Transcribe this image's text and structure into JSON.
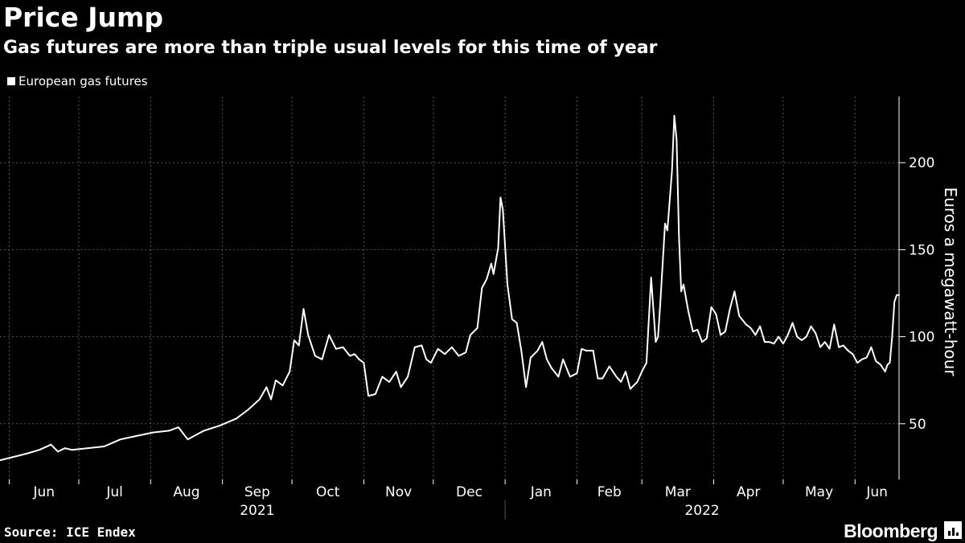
{
  "title": "Price Jump",
  "subtitle": "Gas futures are more than triple usual levels for this time of year",
  "source": "Source: ICE Endex",
  "brand": "Bloomberg",
  "colors": {
    "background": "#000000",
    "line": "#ffffff",
    "grid": "#555555"
  },
  "chart_data": {
    "type": "line",
    "title": "Price Jump",
    "subtitle": "Gas futures are more than triple usual levels for this time of year",
    "xlabel": "",
    "ylabel": "Euros a megawatt-hour",
    "ylim": [
      18,
      238
    ],
    "y_ticks": [
      50,
      100,
      150,
      200
    ],
    "xlim": [
      "2021-05-28",
      "2022-06-20"
    ],
    "x_ticks": [
      {
        "label": "Jun",
        "date": "2021-06-01"
      },
      {
        "label": "Jul",
        "date": "2021-07-01"
      },
      {
        "label": "Aug",
        "date": "2021-08-01"
      },
      {
        "label": "Sep",
        "date": "2021-09-01"
      },
      {
        "label": "Oct",
        "date": "2021-10-01"
      },
      {
        "label": "Nov",
        "date": "2021-11-01"
      },
      {
        "label": "Dec",
        "date": "2021-12-01"
      },
      {
        "label": "Jan",
        "date": "2022-01-01"
      },
      {
        "label": "Feb",
        "date": "2022-02-01"
      },
      {
        "label": "Mar",
        "date": "2022-03-01"
      },
      {
        "label": "Apr",
        "date": "2022-04-01"
      },
      {
        "label": "May",
        "date": "2022-05-01"
      },
      {
        "label": "Jun",
        "date": "2022-06-01"
      }
    ],
    "year_labels": [
      {
        "label": "2021",
        "from": "2021-06-01",
        "to": "2022-01-01"
      },
      {
        "label": "2022",
        "from": "2022-01-01",
        "to": "2022-06-20"
      }
    ],
    "grid": true,
    "legend_position": "top-left",
    "series": [
      {
        "name": "European gas futures",
        "points": [
          [
            "2021-05-28",
            29
          ],
          [
            "2021-06-03",
            31
          ],
          [
            "2021-06-09",
            33
          ],
          [
            "2021-06-14",
            35
          ],
          [
            "2021-06-19",
            38
          ],
          [
            "2021-06-22",
            34
          ],
          [
            "2021-06-25",
            36
          ],
          [
            "2021-06-28",
            35
          ],
          [
            "2021-07-05",
            36
          ],
          [
            "2021-07-12",
            37
          ],
          [
            "2021-07-19",
            41
          ],
          [
            "2021-07-26",
            43
          ],
          [
            "2021-08-02",
            45
          ],
          [
            "2021-08-09",
            46
          ],
          [
            "2021-08-13",
            48
          ],
          [
            "2021-08-17",
            41
          ],
          [
            "2021-08-24",
            46
          ],
          [
            "2021-08-31",
            49
          ],
          [
            "2021-09-07",
            53
          ],
          [
            "2021-09-12",
            58
          ],
          [
            "2021-09-17",
            64
          ],
          [
            "2021-09-20",
            71
          ],
          [
            "2021-09-22",
            64
          ],
          [
            "2021-09-24",
            75
          ],
          [
            "2021-09-27",
            72
          ],
          [
            "2021-09-30",
            80
          ],
          [
            "2021-10-02",
            98
          ],
          [
            "2021-10-04",
            95
          ],
          [
            "2021-10-06",
            116
          ],
          [
            "2021-10-08",
            101
          ],
          [
            "2021-10-11",
            89
          ],
          [
            "2021-10-14",
            87
          ],
          [
            "2021-10-17",
            101
          ],
          [
            "2021-10-20",
            93
          ],
          [
            "2021-10-23",
            94
          ],
          [
            "2021-10-26",
            89
          ],
          [
            "2021-10-28",
            90
          ],
          [
            "2021-10-30",
            87
          ],
          [
            "2021-11-01",
            85
          ],
          [
            "2021-11-03",
            66
          ],
          [
            "2021-11-06",
            67
          ],
          [
            "2021-11-09",
            77
          ],
          [
            "2021-11-12",
            74
          ],
          [
            "2021-11-15",
            80
          ],
          [
            "2021-11-17",
            71
          ],
          [
            "2021-11-20",
            77
          ],
          [
            "2021-11-23",
            94
          ],
          [
            "2021-11-26",
            95
          ],
          [
            "2021-11-28",
            87
          ],
          [
            "2021-11-30",
            85
          ],
          [
            "2021-12-03",
            93
          ],
          [
            "2021-12-06",
            90
          ],
          [
            "2021-12-09",
            94
          ],
          [
            "2021-12-12",
            89
          ],
          [
            "2021-12-15",
            91
          ],
          [
            "2021-12-17",
            101
          ],
          [
            "2021-12-20",
            105
          ],
          [
            "2021-12-22",
            128
          ],
          [
            "2021-12-24",
            133
          ],
          [
            "2021-12-26",
            142
          ],
          [
            "2021-12-27",
            136
          ],
          [
            "2021-12-29",
            151
          ],
          [
            "2021-12-30",
            180
          ],
          [
            "2021-12-31",
            173
          ],
          [
            "2022-01-02",
            130
          ],
          [
            "2022-01-04",
            110
          ],
          [
            "2022-01-06",
            108
          ],
          [
            "2022-01-08",
            92
          ],
          [
            "2022-01-10",
            71
          ],
          [
            "2022-01-12",
            88
          ],
          [
            "2022-01-15",
            92
          ],
          [
            "2022-01-17",
            97
          ],
          [
            "2022-01-19",
            87
          ],
          [
            "2022-01-21",
            82
          ],
          [
            "2022-01-24",
            77
          ],
          [
            "2022-01-26",
            87
          ],
          [
            "2022-01-29",
            77
          ],
          [
            "2022-02-01",
            79
          ],
          [
            "2022-02-03",
            93
          ],
          [
            "2022-02-05",
            92
          ],
          [
            "2022-02-08",
            92
          ],
          [
            "2022-02-10",
            76
          ],
          [
            "2022-02-12",
            76
          ],
          [
            "2022-02-15",
            83
          ],
          [
            "2022-02-18",
            77
          ],
          [
            "2022-02-20",
            74
          ],
          [
            "2022-02-22",
            80
          ],
          [
            "2022-02-24",
            70
          ],
          [
            "2022-02-27",
            74
          ],
          [
            "2022-03-01",
            80
          ],
          [
            "2022-03-03",
            85
          ],
          [
            "2022-03-05",
            134
          ],
          [
            "2022-03-07",
            97
          ],
          [
            "2022-03-08",
            100
          ],
          [
            "2022-03-09",
            120
          ],
          [
            "2022-03-11",
            165
          ],
          [
            "2022-03-12",
            161
          ],
          [
            "2022-03-14",
            195
          ],
          [
            "2022-03-15",
            227
          ],
          [
            "2022-03-16",
            213
          ],
          [
            "2022-03-17",
            158
          ],
          [
            "2022-03-18",
            126
          ],
          [
            "2022-03-19",
            130
          ],
          [
            "2022-03-21",
            115
          ],
          [
            "2022-03-23",
            103
          ],
          [
            "2022-03-25",
            104
          ],
          [
            "2022-03-27",
            97
          ],
          [
            "2022-03-29",
            99
          ],
          [
            "2022-03-31",
            117
          ],
          [
            "2022-04-02",
            113
          ],
          [
            "2022-04-04",
            101
          ],
          [
            "2022-04-06",
            103
          ],
          [
            "2022-04-08",
            116
          ],
          [
            "2022-04-10",
            126
          ],
          [
            "2022-04-12",
            112
          ],
          [
            "2022-04-15",
            107
          ],
          [
            "2022-04-17",
            105
          ],
          [
            "2022-04-19",
            101
          ],
          [
            "2022-04-21",
            106
          ],
          [
            "2022-04-23",
            97
          ],
          [
            "2022-04-25",
            97
          ],
          [
            "2022-04-27",
            96
          ],
          [
            "2022-04-29",
            100
          ],
          [
            "2022-05-01",
            96
          ],
          [
            "2022-05-03",
            101
          ],
          [
            "2022-05-05",
            108
          ],
          [
            "2022-05-07",
            100
          ],
          [
            "2022-05-09",
            98
          ],
          [
            "2022-05-11",
            100
          ],
          [
            "2022-05-13",
            106
          ],
          [
            "2022-05-15",
            102
          ],
          [
            "2022-05-17",
            94
          ],
          [
            "2022-05-19",
            97
          ],
          [
            "2022-05-21",
            93
          ],
          [
            "2022-05-23",
            107
          ],
          [
            "2022-05-25",
            94
          ],
          [
            "2022-05-27",
            95
          ],
          [
            "2022-05-29",
            92
          ],
          [
            "2022-05-31",
            90
          ],
          [
            "2022-06-02",
            85
          ],
          [
            "2022-06-04",
            87
          ],
          [
            "2022-06-06",
            88
          ],
          [
            "2022-06-08",
            94
          ],
          [
            "2022-06-10",
            86
          ],
          [
            "2022-06-12",
            84
          ],
          [
            "2022-06-14",
            80
          ],
          [
            "2022-06-15",
            84
          ],
          [
            "2022-06-16",
            85
          ],
          [
            "2022-06-17",
            100
          ],
          [
            "2022-06-18",
            120
          ],
          [
            "2022-06-19",
            124
          ],
          [
            "2022-06-20",
            124
          ]
        ]
      }
    ]
  }
}
